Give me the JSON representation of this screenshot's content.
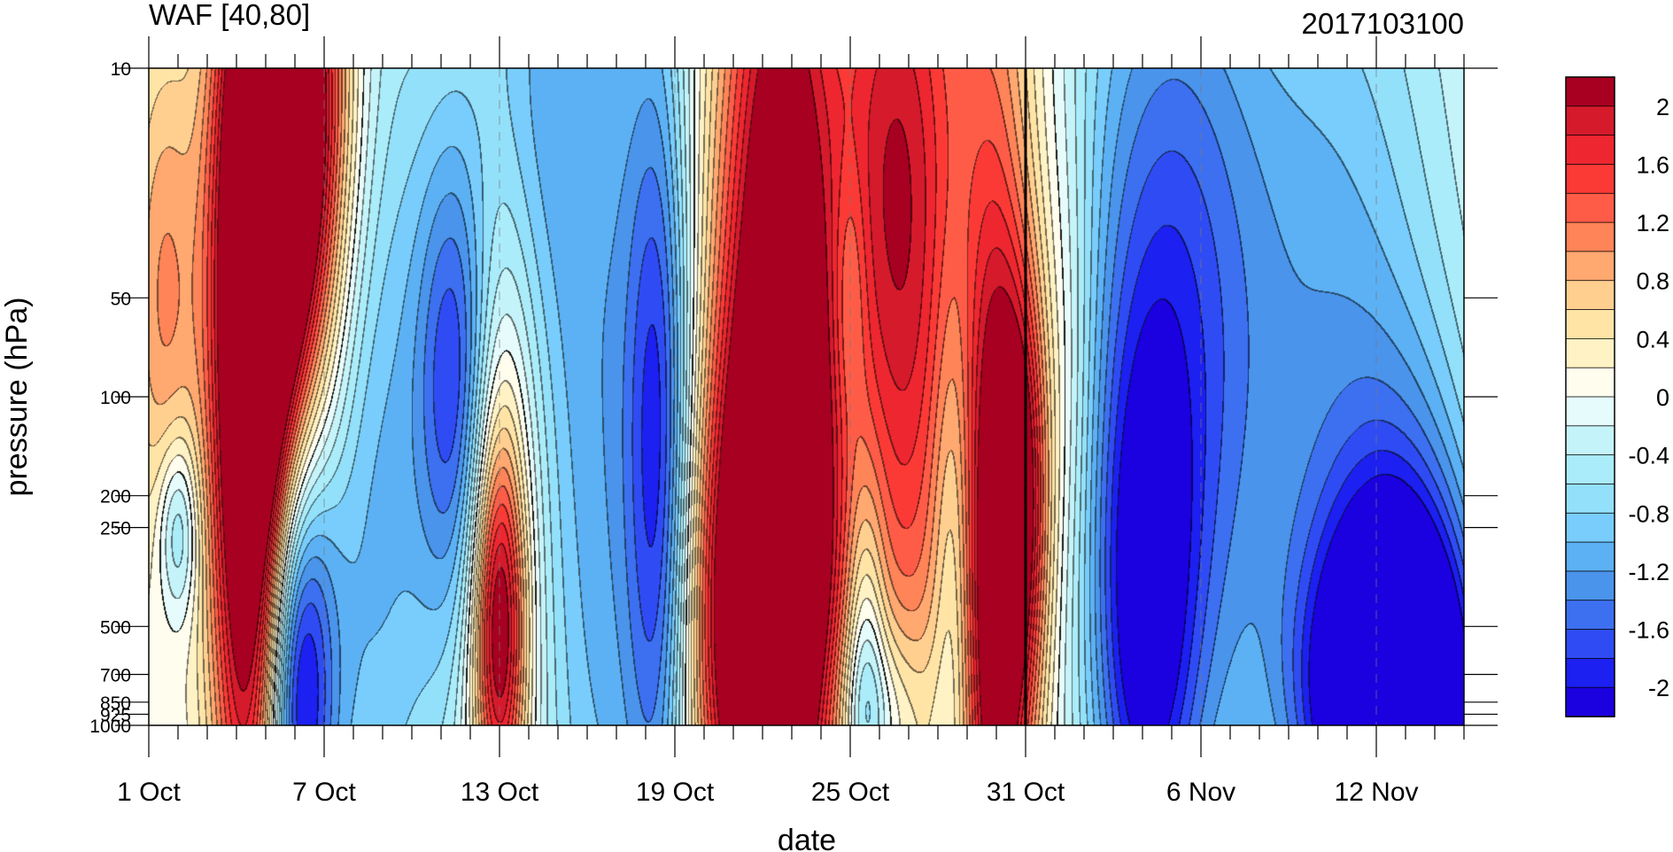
{
  "chart_data": {
    "type": "heatmap",
    "title_left": "WAF [40,80]",
    "title_right": "2017103100",
    "xlabel": "date",
    "ylabel": "pressure (hPa)",
    "x_start": "1 Oct",
    "x_end": "15 Nov",
    "x_tick_labels": [
      "1 Oct",
      "7 Oct",
      "13 Oct",
      "19 Oct",
      "25 Oct",
      "31 Oct",
      "6 Nov",
      "12 Nov"
    ],
    "x_tick_days": [
      0,
      6,
      12,
      18,
      24,
      30,
      36,
      42
    ],
    "x_range_days": [
      0,
      45
    ],
    "y_scale": "log",
    "y_tick_labels": [
      "10",
      "50",
      "100",
      "200",
      "250",
      "500",
      "700",
      "850",
      "925",
      "1000"
    ],
    "y_tick_values": [
      10,
      50,
      100,
      200,
      250,
      500,
      700,
      850,
      925,
      1000
    ],
    "ylim": [
      1000,
      10
    ],
    "reference_line": "31 Oct",
    "legend_labels": [
      "2",
      "1.6",
      "1.2",
      "0.8",
      "0.4",
      "0",
      "-0.4",
      "-0.8",
      "-1.2",
      "-1.6",
      "-2"
    ],
    "legend_values": [
      2,
      1.6,
      1.2,
      0.8,
      0.4,
      0,
      -0.4,
      -0.8,
      -1.2,
      -1.6,
      -2
    ],
    "levels": [
      -2.2,
      -2,
      -1.8,
      -1.6,
      -1.4,
      -1.2,
      -1,
      -0.8,
      -0.6,
      -0.4,
      -0.2,
      0,
      0.2,
      0.4,
      0.6,
      0.8,
      1,
      1.2,
      1.4,
      1.6,
      1.8,
      2,
      2.2
    ],
    "colors": [
      "#1b00e0",
      "#1c20f0",
      "#2f4cf4",
      "#3d70f0",
      "#4a94ec",
      "#5cb1f4",
      "#78cdfc",
      "#93e0fb",
      "#aaecfa",
      "#c4f4fa",
      "#e6fcfc",
      "#fffded",
      "#fff2c4",
      "#ffe4a6",
      "#ffcf90",
      "#ffa870",
      "#ff8458",
      "#ff5c48",
      "#fb3a36",
      "#ee2630",
      "#d51a2c",
      "#a80020"
    ],
    "value_features": [
      {
        "day": 0.5,
        "p": 50,
        "value": 1.0,
        "sd": 0.9,
        "sp": 0.6
      },
      {
        "day": 3.5,
        "p": 400,
        "value": 1.7,
        "sd": 0.9,
        "sp": 0.9
      },
      {
        "day": 3.5,
        "p": 60,
        "value": 1.6,
        "sd": 1.0,
        "sp": 0.9
      },
      {
        "day": 5.0,
        "p": 12,
        "value": 2.5,
        "sd": 1.4,
        "sp": 0.6
      },
      {
        "day": 4.5,
        "p": 30,
        "value": 1.6,
        "sd": 1.3,
        "sp": 0.7
      },
      {
        "day": 1.0,
        "p": 250,
        "value": -1.0,
        "sd": 0.5,
        "sp": 0.2
      },
      {
        "day": 5.0,
        "p": 700,
        "value": -2.2,
        "sd": 0.9,
        "sp": 0.5
      },
      {
        "day": 7.5,
        "p": 120,
        "value": -0.9,
        "sd": 2.0,
        "sp": 1.4
      },
      {
        "day": 10.5,
        "p": 90,
        "value": -1.3,
        "sd": 0.9,
        "sp": 0.5
      },
      {
        "day": 8.0,
        "p": 300,
        "value": -0.2,
        "sd": 1.5,
        "sp": 0.8
      },
      {
        "day": 11.0,
        "p": 300,
        "value": -0.3,
        "sd": 1.2,
        "sp": 1.0
      },
      {
        "day": 11.5,
        "p": 30,
        "value": 0.1,
        "sd": 1.2,
        "sp": 0.6
      },
      {
        "day": 12.0,
        "p": 300,
        "value": 1.0,
        "sd": 1.0,
        "sp": 0.9
      },
      {
        "day": 12.0,
        "p": 500,
        "value": 1.9,
        "sd": 0.6,
        "sp": 0.4
      },
      {
        "day": 12.5,
        "p": 12,
        "value": -0.7,
        "sd": 1.5,
        "sp": 0.6
      },
      {
        "day": 14.0,
        "p": 50,
        "value": -0.4,
        "sd": 1.6,
        "sp": 1.5
      },
      {
        "day": 15.5,
        "p": 300,
        "value": -0.3,
        "sd": 1.2,
        "sp": 1.5
      },
      {
        "day": 17.0,
        "p": 150,
        "value": -0.7,
        "sd": 2.5,
        "sp": 2.0
      },
      {
        "day": 17.5,
        "p": 180,
        "value": -1.4,
        "sd": 0.8,
        "sp": 0.9
      },
      {
        "day": 19.0,
        "p": 30,
        "value": 0.4,
        "sd": 1.0,
        "sp": 0.8
      },
      {
        "day": 21.5,
        "p": 25,
        "value": 1.8,
        "sd": 1.4,
        "sp": 1.0
      },
      {
        "day": 21.5,
        "p": 120,
        "value": 0.9,
        "sd": 1.5,
        "sp": 1.2
      },
      {
        "day": 21.5,
        "p": 450,
        "value": 2.0,
        "sd": 1.6,
        "sp": 0.6
      },
      {
        "day": 20.0,
        "p": 700,
        "value": 1.2,
        "sd": 1.6,
        "sp": 0.6
      },
      {
        "day": 25.5,
        "p": 15,
        "value": 1.7,
        "sd": 1.6,
        "sp": 0.8
      },
      {
        "day": 26.0,
        "p": 250,
        "value": 0.8,
        "sd": 1.2,
        "sp": 0.8
      },
      {
        "day": 24.0,
        "p": 50,
        "value": -0.5,
        "sd": 0.4,
        "sp": 0.3
      },
      {
        "day": 24.5,
        "p": 600,
        "value": -0.9,
        "sd": 0.5,
        "sp": 0.4
      },
      {
        "day": 25.0,
        "p": 900,
        "value": -0.7,
        "sd": 1.2,
        "sp": 0.2
      },
      {
        "day": 27.5,
        "p": 300,
        "value": -0.6,
        "sd": 0.5,
        "sp": 0.6
      },
      {
        "day": 29.0,
        "p": 30,
        "value": 1.0,
        "sd": 1.4,
        "sp": 1.5
      },
      {
        "day": 29.0,
        "p": 500,
        "value": 2.0,
        "sd": 0.7,
        "sp": 0.8
      },
      {
        "day": 30.0,
        "p": 200,
        "value": 1.5,
        "sd": 0.6,
        "sp": 0.5
      },
      {
        "day": 31.5,
        "p": 80,
        "value": 0.4,
        "sd": 0.7,
        "sp": 0.6
      },
      {
        "day": 33.5,
        "p": 20,
        "value": -0.5,
        "sd": 3.0,
        "sp": 1.2
      },
      {
        "day": 35.0,
        "p": 130,
        "value": -1.3,
        "sd": 2.2,
        "sp": 1.1
      },
      {
        "day": 34.0,
        "p": 550,
        "value": -1.2,
        "sd": 1.2,
        "sp": 0.6
      },
      {
        "day": 36.5,
        "p": 350,
        "value": 0.1,
        "sd": 1.5,
        "sp": 0.6
      },
      {
        "day": 40.5,
        "p": 60,
        "value": -1.0,
        "sd": 3.0,
        "sp": 1.2
      },
      {
        "day": 42.5,
        "p": 850,
        "value": -2.3,
        "sd": 2.0,
        "sp": 0.35
      },
      {
        "day": 43.0,
        "p": 650,
        "value": -1.5,
        "sd": 2.0,
        "sp": 0.6
      }
    ]
  }
}
